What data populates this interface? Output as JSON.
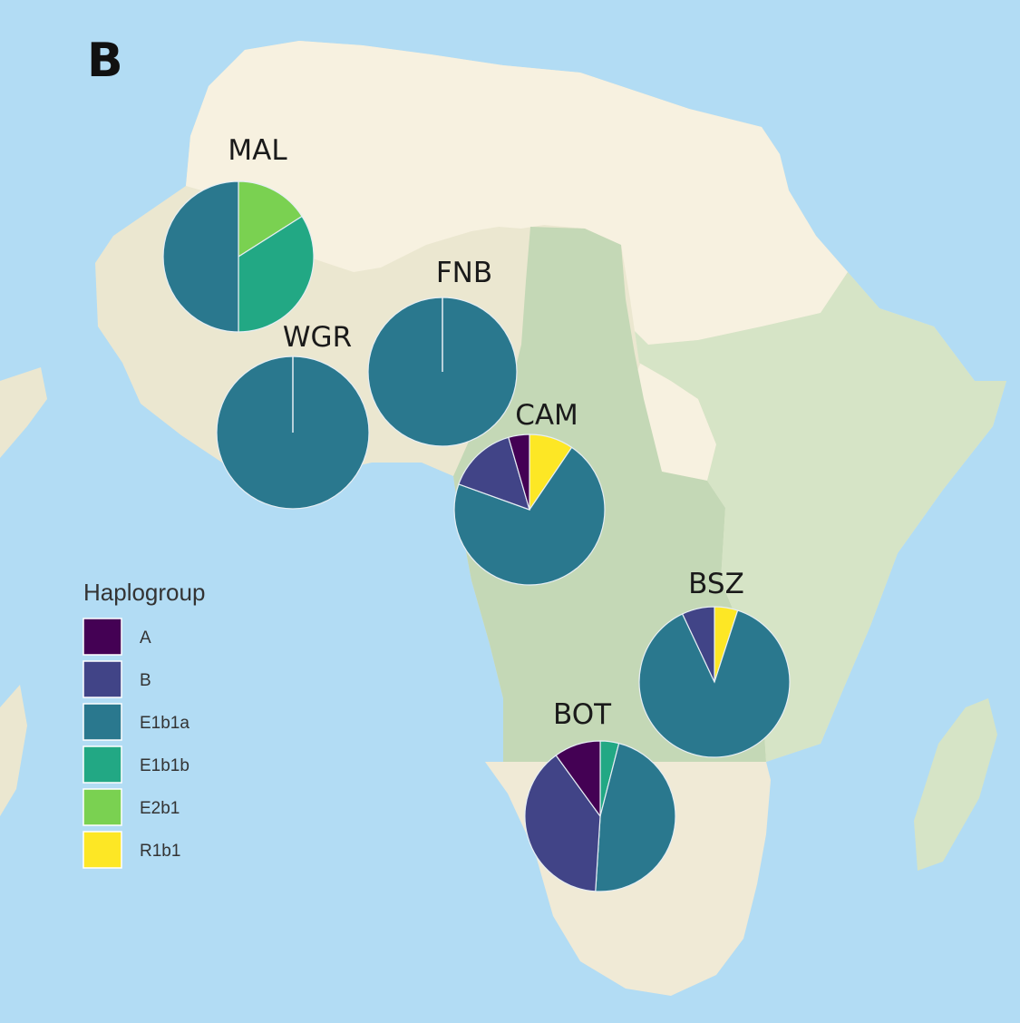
{
  "panel_label": "B",
  "legend": {
    "title": "Haplogroup",
    "items": [
      {
        "label": "A",
        "color": "#440154"
      },
      {
        "label": "B",
        "color": "#414487"
      },
      {
        "label": "E1b1a",
        "color": "#2a788e"
      },
      {
        "label": "E1b1b",
        "color": "#22a884"
      },
      {
        "label": "E2b1",
        "color": "#7ad151"
      },
      {
        "label": "R1b1",
        "color": "#fde725"
      }
    ]
  },
  "colors": {
    "ocean": "#b2dcf4",
    "sahara": "#f7f1e0",
    "sahel": "#ebe7d0",
    "central_africa": "#c4d8b6",
    "east_africa": "#d6e4c6",
    "southern_africa": "#f0ead6",
    "pie_divider": "#e6eef4"
  },
  "chart_data": {
    "type": "pie",
    "sites": [
      {
        "name": "MAL",
        "slices": {
          "E2b1": 0.16,
          "E1b1b": 0.34,
          "E1b1a": 0.5
        }
      },
      {
        "name": "FNB",
        "slices": {
          "E1b1a": 1.0
        }
      },
      {
        "name": "WGR",
        "slices": {
          "E1b1a": 1.0
        }
      },
      {
        "name": "CAM",
        "slices": {
          "R1b1": 0.095,
          "E1b1a": 0.71,
          "B": 0.15,
          "A": 0.045
        }
      },
      {
        "name": "BSZ",
        "slices": {
          "R1b1": 0.05,
          "E1b1a": 0.88,
          "B": 0.07
        }
      },
      {
        "name": "BOT",
        "slices": {
          "E1b1b": 0.04,
          "E1b1a": 0.47,
          "B": 0.39,
          "A": 0.1
        }
      }
    ]
  }
}
